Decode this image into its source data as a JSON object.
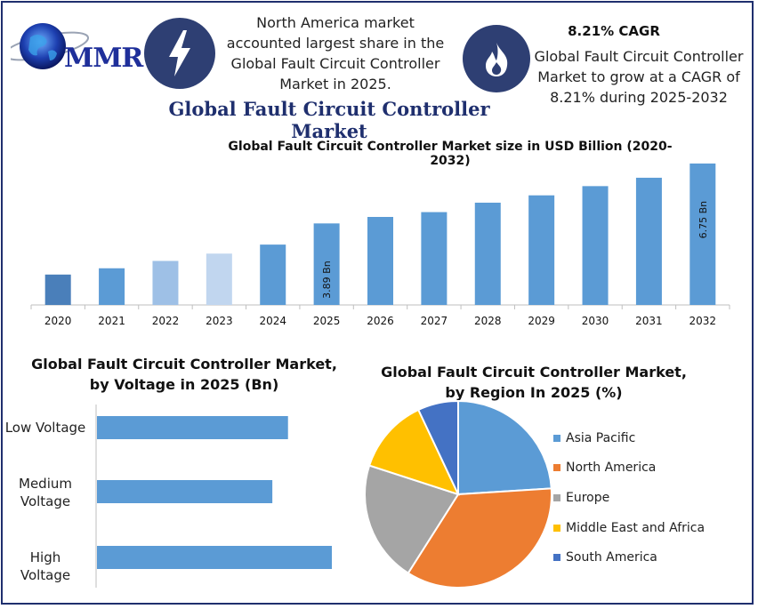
{
  "header": {
    "logo_text": "MMR",
    "info1_lines": [
      "North America market",
      "accounted largest share in the",
      "Global Fault Circuit Controller",
      "Market in 2025."
    ],
    "cagr_title": "8.21% CAGR",
    "info2_lines": [
      "Global Fault Circuit Controller",
      "Market to grow at a CAGR of",
      "8.21% during 2025-2032"
    ],
    "main_title": "Global Fault Circuit Controller Market",
    "icons": [
      "lightning-icon",
      "flame-icon",
      "globe-logo-icon"
    ],
    "icon_bg_color": "#2e3f73"
  },
  "chart_data": [
    {
      "type": "bar",
      "title": "Global Fault Circuit Controller Market size in USD Billion (2020-2032)",
      "categories": [
        "2020",
        "2021",
        "2022",
        "2023",
        "2024",
        "2025",
        "2026",
        "2027",
        "2028",
        "2029",
        "2030",
        "2031",
        "2032"
      ],
      "values": [
        1.45,
        1.75,
        2.1,
        2.45,
        2.88,
        3.89,
        4.2,
        4.43,
        4.88,
        5.23,
        5.67,
        6.07,
        6.75
      ],
      "colors": [
        "#4a7fba",
        "#5b9bd5",
        "#9ec0e6",
        "#c1d6ef",
        "#5b9bd5",
        "#5b9bd5",
        "#5b9bd5",
        "#5b9bd5",
        "#5b9bd5",
        "#5b9bd5",
        "#5b9bd5",
        "#5b9bd5",
        "#5b9bd5"
      ],
      "data_labels": {
        "2025": "3.89 Bn",
        "2032": "6.75 Bn"
      },
      "ylim": [
        0,
        7
      ]
    },
    {
      "type": "bar",
      "orientation": "horizontal",
      "title_lines": [
        "Global Fault Circuit Controller Market,",
        "by Voltage in 2025 (Bn)"
      ],
      "categories": [
        "Low Voltage",
        "Medium Voltage",
        "High Voltage"
      ],
      "category_lines": [
        [
          "Low Voltage"
        ],
        [
          "Medium",
          "Voltage"
        ],
        [
          "High Voltage"
        ]
      ],
      "values": [
        1.22,
        1.12,
        1.5
      ],
      "color": "#5b9bd5",
      "xlim": [
        0,
        2
      ]
    },
    {
      "type": "pie",
      "title_lines": [
        "Global Fault Circuit Controller Market,",
        "by Region In 2025 (%)"
      ],
      "categories": [
        "Asia Pacific",
        "North America",
        "Europe",
        "Middle East and Africa",
        "South America"
      ],
      "values": [
        24,
        35,
        21,
        13,
        7
      ],
      "colors": [
        "#5b9bd5",
        "#ed7d31",
        "#a5a5a5",
        "#ffc000",
        "#4472c4"
      ]
    }
  ]
}
